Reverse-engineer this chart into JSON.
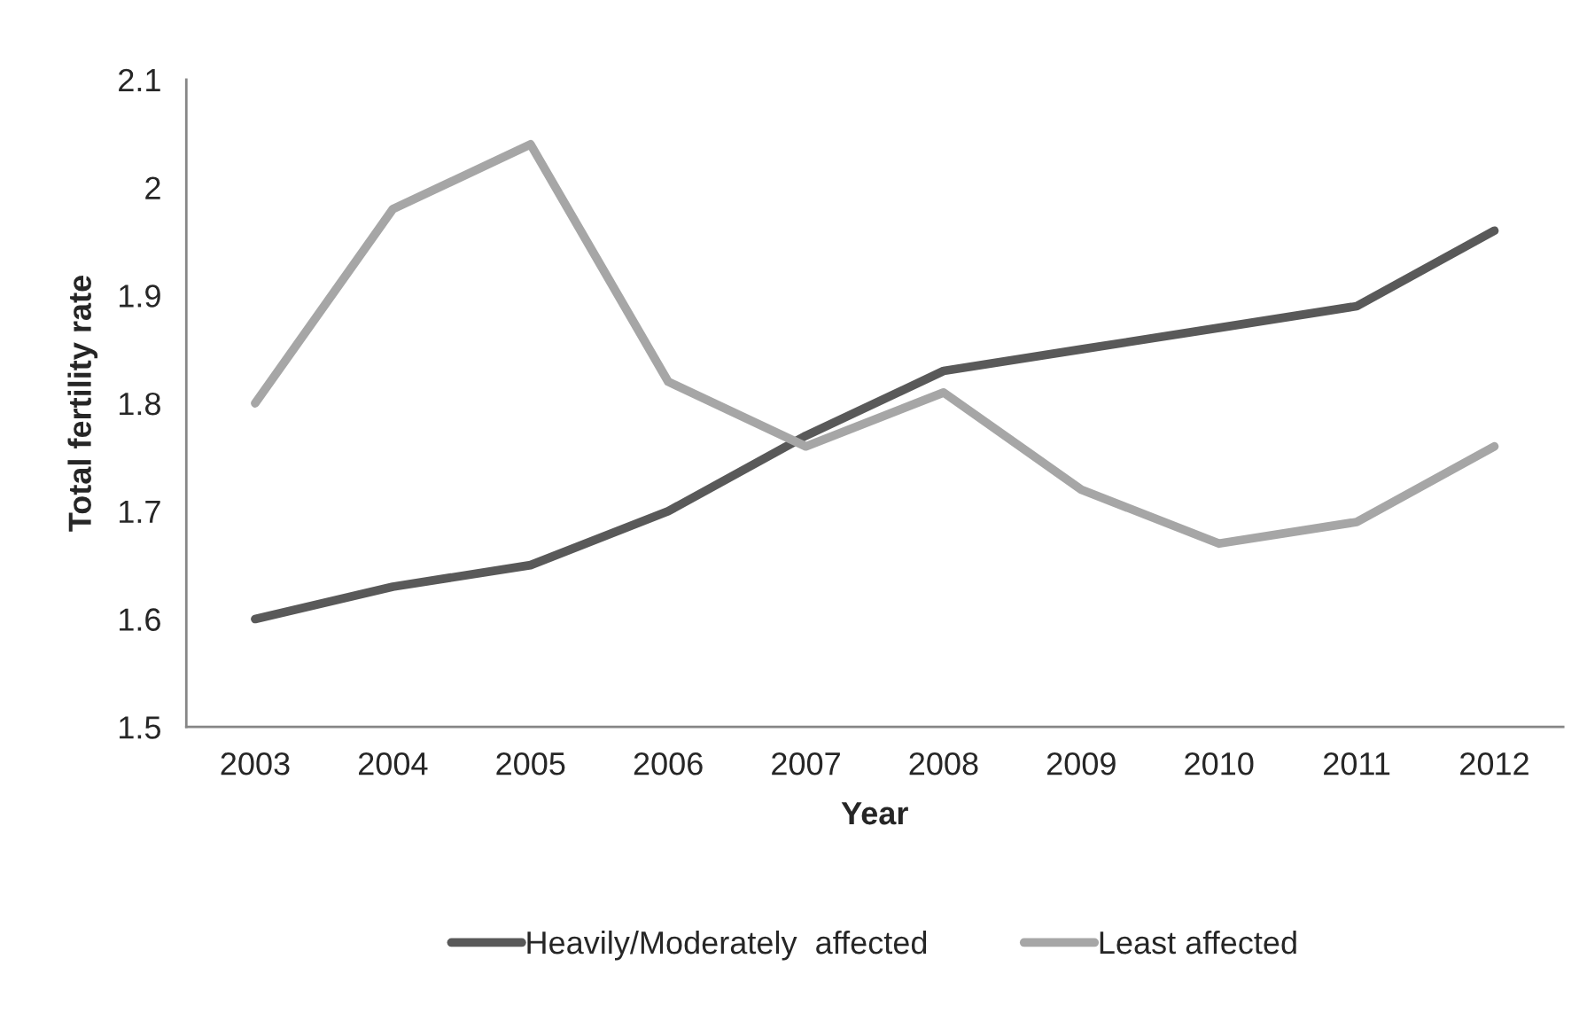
{
  "chart_data": {
    "type": "line",
    "xlabel": "Year",
    "ylabel": "Total fertility rate",
    "categories": [
      "2003",
      "2004",
      "2005",
      "2006",
      "2007",
      "2008",
      "2009",
      "2010",
      "2011",
      "2012"
    ],
    "series": [
      {
        "name": "Heavily/Moderately  affected",
        "color": "#595959",
        "values": [
          1.6,
          1.63,
          1.65,
          1.7,
          1.77,
          1.83,
          1.85,
          1.87,
          1.89,
          1.96
        ]
      },
      {
        "name": "Least affected",
        "color": "#a6a6a6",
        "values": [
          1.8,
          1.98,
          2.04,
          1.82,
          1.76,
          1.81,
          1.72,
          1.67,
          1.69,
          1.76
        ]
      }
    ],
    "ylim": [
      1.5,
      2.1
    ],
    "yticks": [
      1.5,
      1.6,
      1.7,
      1.8,
      1.9,
      2,
      2.1
    ],
    "grid": false,
    "legend": "bottom",
    "marker": "none",
    "line_style": "solid"
  }
}
